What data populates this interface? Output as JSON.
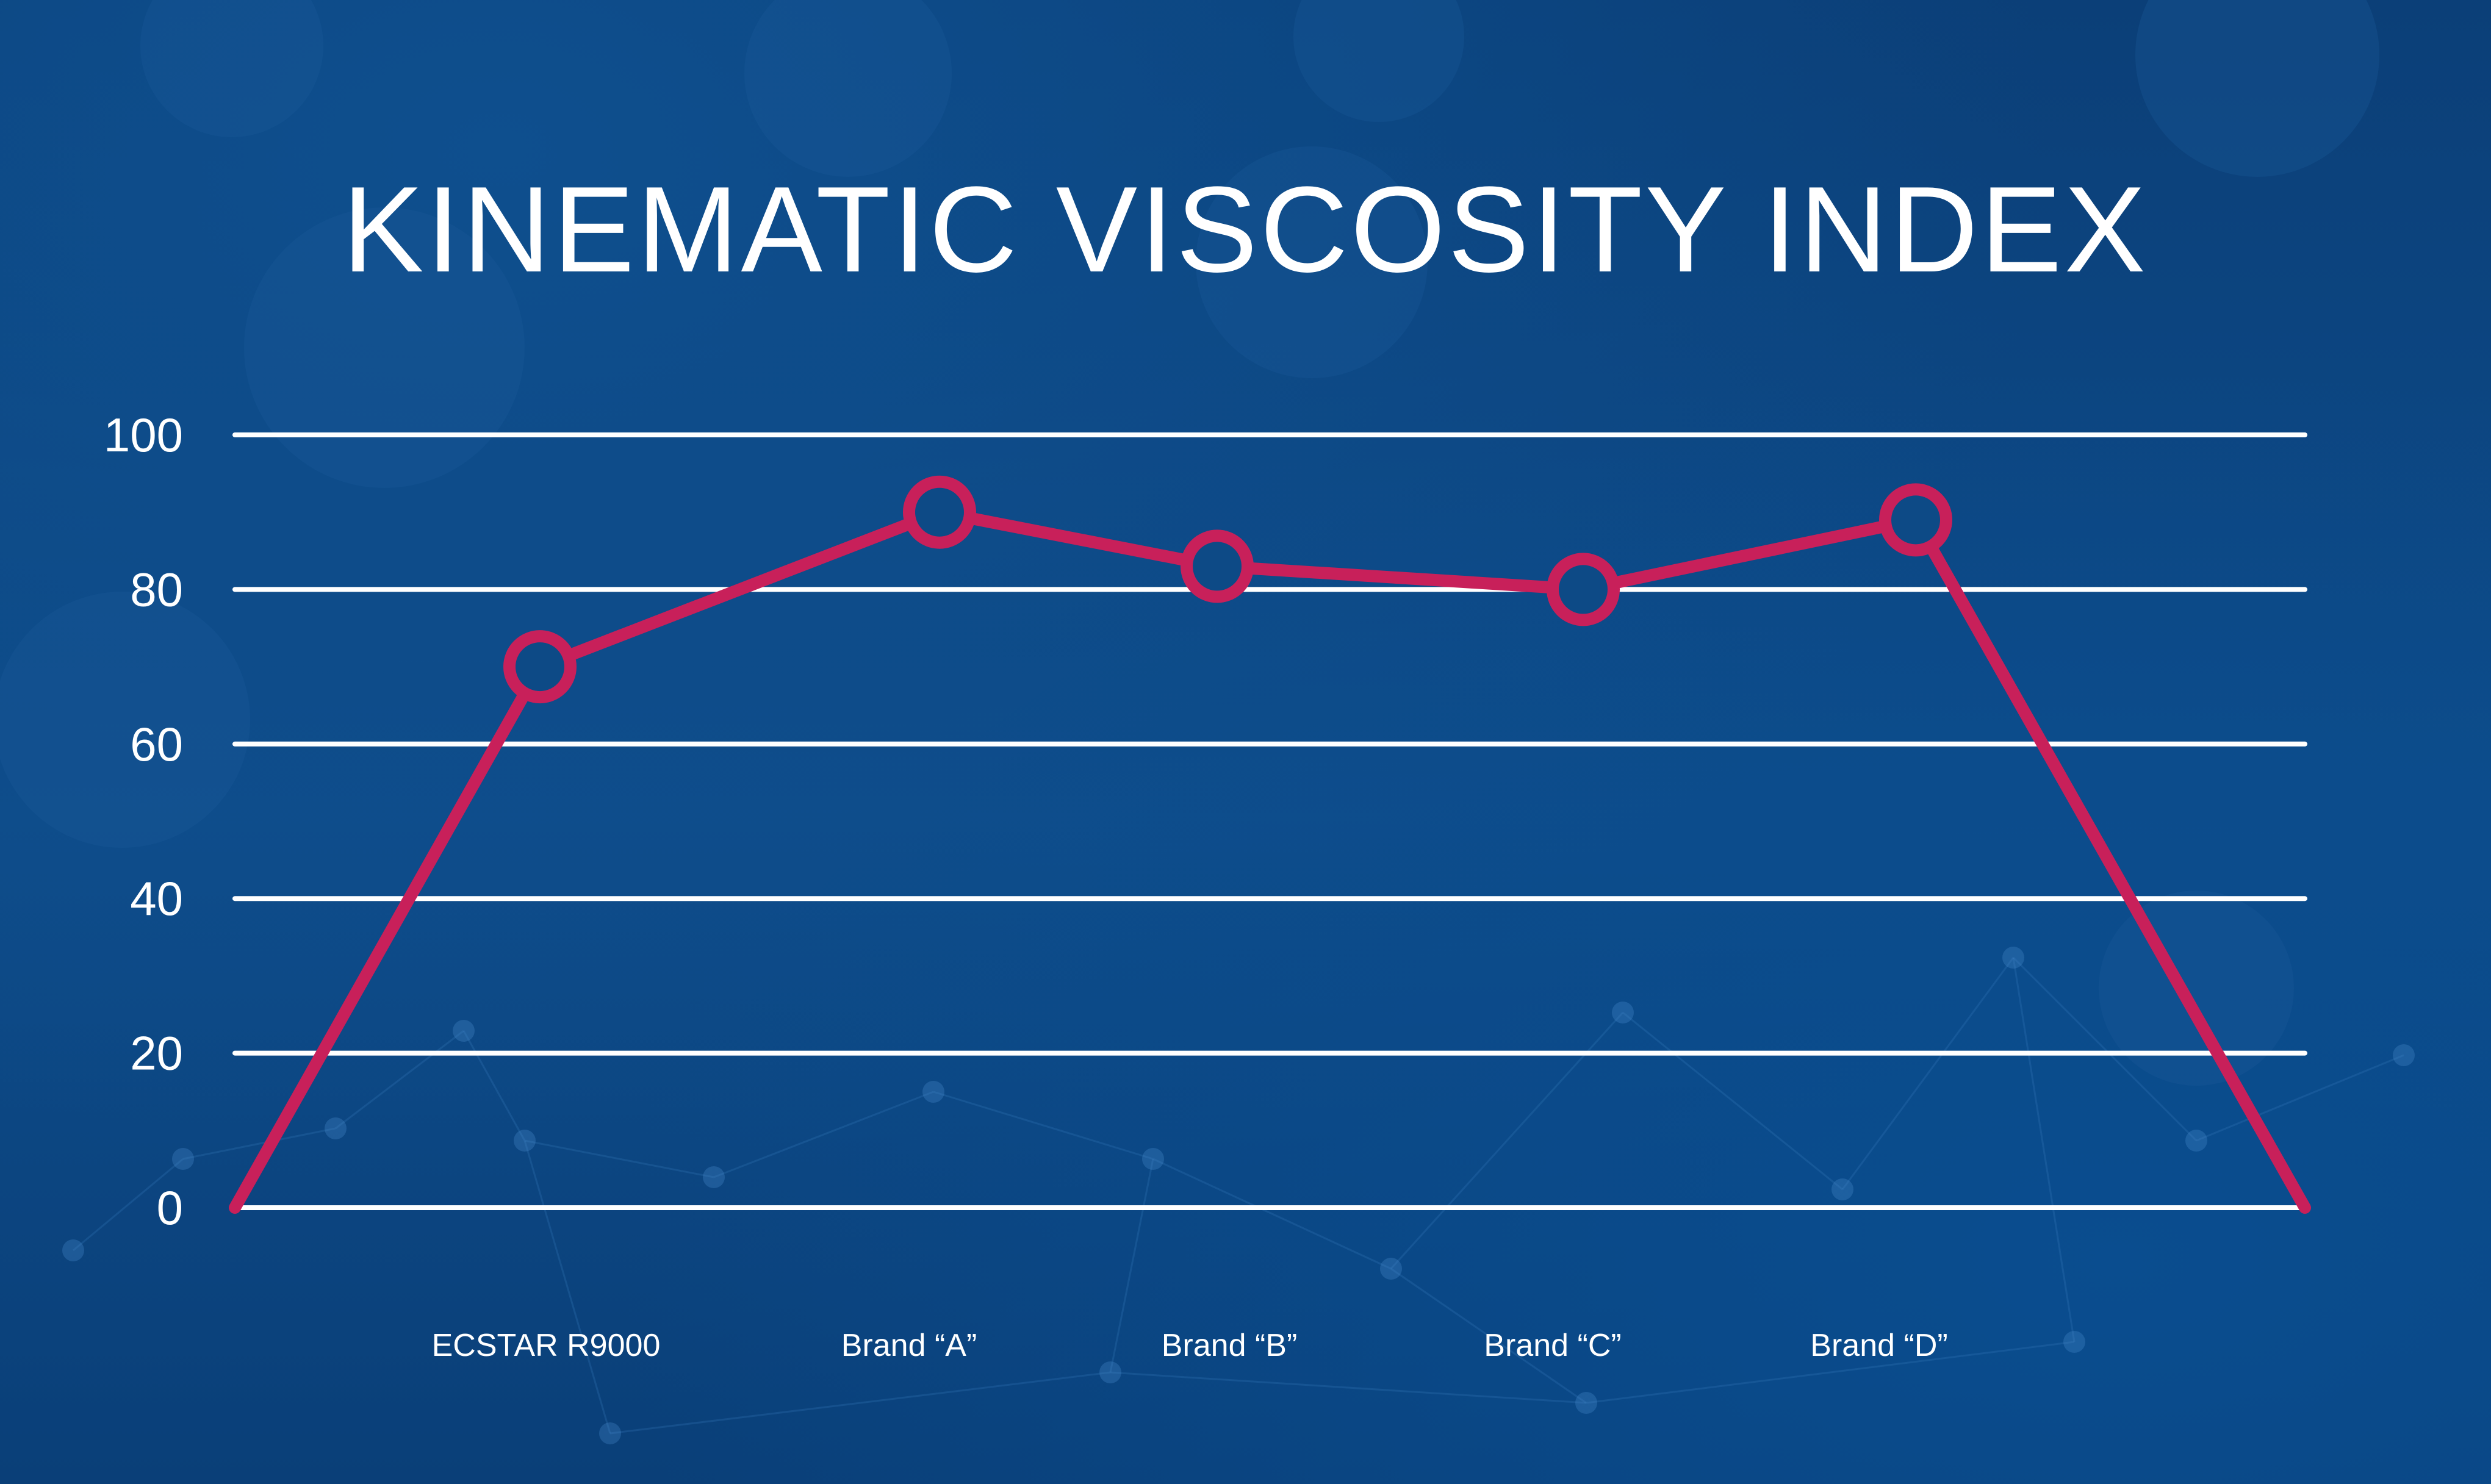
{
  "colors": {
    "background": "#0d4a86",
    "grid": "#ffffff",
    "line": "#c8205a",
    "marker_fill": "#0d4a86",
    "text": "#ffffff"
  },
  "chart_data": {
    "type": "line",
    "title": "KINEMATIC VISCOSITY INDEX",
    "xlabel": "",
    "ylabel": "",
    "ylim": [
      0,
      100
    ],
    "yticks": [
      "0",
      "20",
      "40",
      "60",
      "80",
      "100"
    ],
    "grid": true,
    "categories": [
      "",
      "ECSTAR R9000",
      "Brand “A”",
      "Brand “B”",
      "Brand “C”",
      "Brand “D”",
      ""
    ],
    "series": [
      {
        "values": [
          0,
          70,
          90,
          83,
          80,
          89,
          0
        ],
        "markers": [
          false,
          true,
          true,
          true,
          true,
          true,
          false
        ]
      }
    ]
  }
}
